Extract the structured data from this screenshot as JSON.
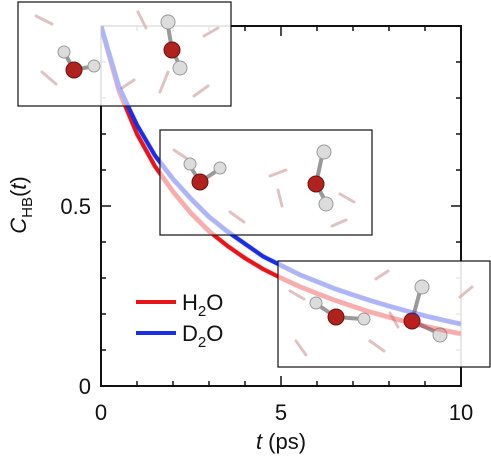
{
  "chart_data": {
    "type": "line",
    "xlabel": {
      "var": "t",
      "unit": " (ps)"
    },
    "ylabel": {
      "var": "C",
      "sub": "HB",
      "arg": "t"
    },
    "xlim": [
      0,
      10
    ],
    "ylim": [
      0,
      1
    ],
    "xticks": [
      {
        "value": 0,
        "label": "0"
      },
      {
        "value": 5,
        "label": "5"
      },
      {
        "value": 10,
        "label": "10"
      }
    ],
    "yticks": [
      {
        "value": 0,
        "label": "0"
      },
      {
        "value": 0.5,
        "label": "0.5"
      }
    ],
    "legend_position": "lower-left",
    "series": [
      {
        "name": "H₂O",
        "legend": {
          "base": "H",
          "sub": "2",
          "rest": "O"
        },
        "color": "#e8141a",
        "x": [
          0,
          0.5,
          1,
          1.5,
          2,
          2.5,
          3,
          3.5,
          4,
          4.5,
          5,
          5.5,
          6,
          6.5,
          7,
          7.5,
          8,
          8.5,
          9,
          9.5,
          10
        ],
        "y": [
          1.0,
          0.82,
          0.7,
          0.61,
          0.54,
          0.48,
          0.43,
          0.39,
          0.355,
          0.325,
          0.3,
          0.277,
          0.257,
          0.238,
          0.221,
          0.205,
          0.191,
          0.178,
          0.166,
          0.155,
          0.145
        ]
      },
      {
        "name": "D₂O",
        "legend": {
          "base": "D",
          "sub": "2",
          "rest": "O"
        },
        "color": "#1b2ee6",
        "x": [
          0,
          0.5,
          1,
          1.5,
          2,
          2.5,
          3,
          3.5,
          4,
          4.5,
          5,
          5.5,
          6,
          6.5,
          7,
          7.5,
          8,
          8.5,
          9,
          9.5,
          10
        ],
        "y": [
          1.0,
          0.83,
          0.725,
          0.64,
          0.575,
          0.52,
          0.47,
          0.43,
          0.395,
          0.36,
          0.335,
          0.31,
          0.29,
          0.27,
          0.253,
          0.237,
          0.222,
          0.208,
          0.195,
          0.183,
          0.172
        ]
      }
    ]
  }
}
